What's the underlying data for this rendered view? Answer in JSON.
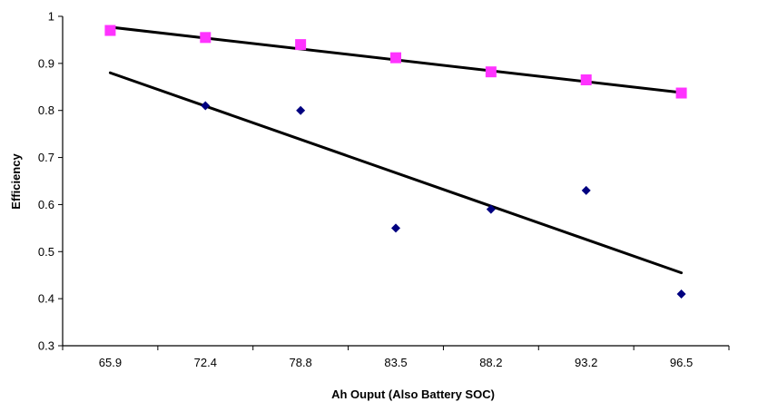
{
  "chart_data": {
    "type": "scatter",
    "title": "",
    "xlabel": "Ah Ouput (Also Battery SOC)",
    "ylabel": "Efficiency",
    "categories": [
      "65.9",
      "72.4",
      "78.8",
      "83.5",
      "88.2",
      "93.2",
      "96.5"
    ],
    "ylim": [
      0.3,
      1
    ],
    "yticks": [
      0.3,
      0.4,
      0.5,
      0.6,
      0.7,
      0.8,
      0.9,
      1
    ],
    "ytick_labels": [
      "0.3",
      "0.4",
      "0.5",
      "0.6",
      "0.7",
      "0.8",
      "0.9",
      "1"
    ],
    "grid": false,
    "legend": "none",
    "series": [
      {
        "marker": "square",
        "color": "#ff33ff",
        "values": [
          0.97,
          0.955,
          0.94,
          0.912,
          0.882,
          0.865,
          0.837
        ],
        "trendline": [
          0.977,
          0.838
        ]
      },
      {
        "marker": "diamond",
        "color": "#000080",
        "values": [
          null,
          0.81,
          0.8,
          0.55,
          0.59,
          0.63,
          0.41
        ],
        "trendline": [
          0.88,
          0.455
        ]
      }
    ]
  }
}
